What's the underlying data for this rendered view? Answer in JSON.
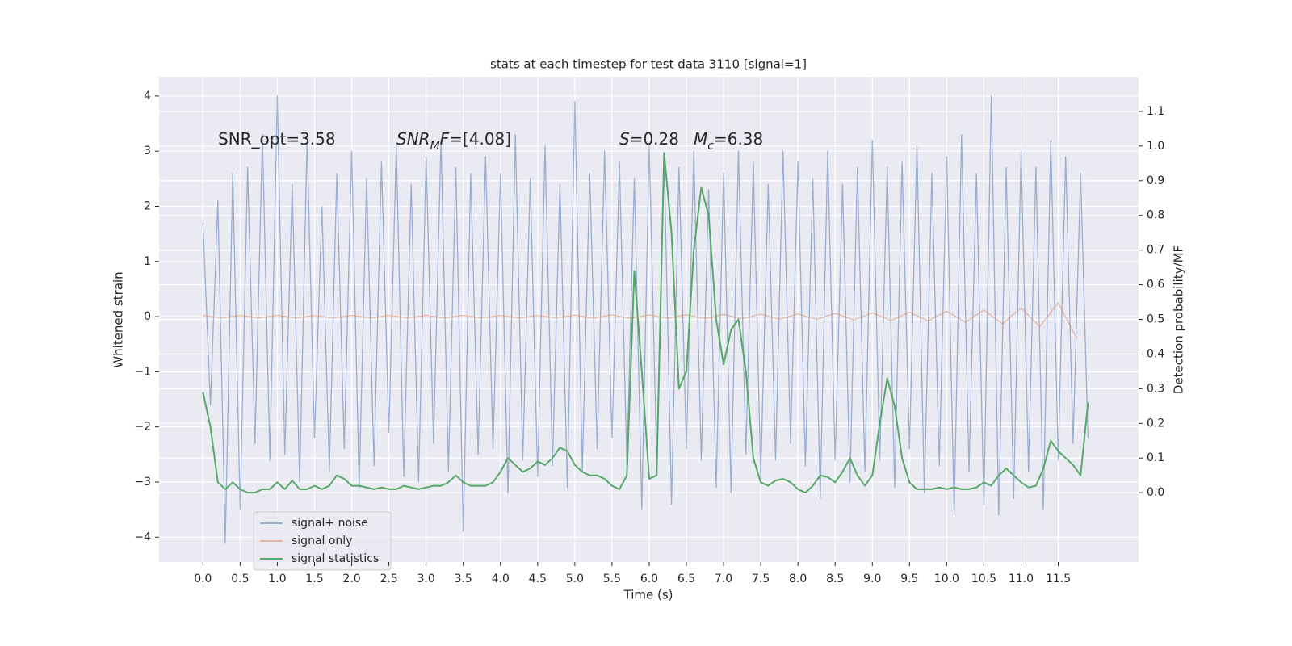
{
  "chart_data": {
    "type": "line",
    "title": "stats at each timestep for test data 3110 [signal=1]",
    "xlabel": "Time (s)",
    "ylabel": "Whitened strain",
    "y2label": "Detection probability/MF",
    "annotations": [
      [
        {
          "text": "SNR_opt=3.58"
        }
      ],
      [
        {
          "text": "SNR",
          "italic": true
        },
        {
          "text": "M",
          "italic": true,
          "sub": true
        },
        {
          "text": "F",
          "italic": true
        },
        {
          "text": "=[4.08]"
        }
      ],
      [
        {
          "text": "S",
          "italic": true
        },
        {
          "text": "=0.28"
        }
      ],
      [
        {
          "text": "M",
          "italic": true
        },
        {
          "text": "c",
          "italic": true,
          "sub": true
        },
        {
          "text": "=6.38"
        }
      ]
    ],
    "x": [
      0.0,
      0.1,
      0.2,
      0.3,
      0.4,
      0.5,
      0.6,
      0.7,
      0.8,
      0.9,
      1.0,
      1.1,
      1.2,
      1.3,
      1.4,
      1.5,
      1.6,
      1.7,
      1.8,
      1.9,
      2.0,
      2.1,
      2.2,
      2.3,
      2.4,
      2.5,
      2.6,
      2.7,
      2.8,
      2.9,
      3.0,
      3.1,
      3.2,
      3.3,
      3.4,
      3.5,
      3.6,
      3.7,
      3.8,
      3.9,
      4.0,
      4.1,
      4.2,
      4.3,
      4.4,
      4.5,
      4.6,
      4.7,
      4.8,
      4.9,
      5.0,
      5.1,
      5.2,
      5.3,
      5.4,
      5.5,
      5.6,
      5.7,
      5.8,
      5.9,
      6.0,
      6.1,
      6.2,
      6.3,
      6.4,
      6.5,
      6.6,
      6.7,
      6.8,
      6.9,
      7.0,
      7.1,
      7.2,
      7.3,
      7.4,
      7.5,
      7.6,
      7.7,
      7.8,
      7.9,
      8.0,
      8.1,
      8.2,
      8.3,
      8.4,
      8.5,
      8.6,
      8.7,
      8.8,
      8.9,
      9.0,
      9.1,
      9.2,
      9.3,
      9.4,
      9.5,
      9.6,
      9.7,
      9.8,
      9.9,
      10.0,
      10.1,
      10.2,
      10.3,
      10.4,
      10.5,
      10.6,
      10.7,
      10.8,
      10.9,
      11.0,
      11.1,
      11.2,
      11.3,
      11.4,
      11.5,
      11.6,
      11.7,
      11.8,
      11.9
    ],
    "series": [
      {
        "name": "signal+ noise",
        "color": "#4c72b0",
        "opacity": 0.5,
        "values": [
          1.7,
          -1.6,
          2.1,
          -4.1,
          2.6,
          -3.5,
          2.7,
          -2.3,
          3.3,
          -2.6,
          4.0,
          -2.5,
          2.4,
          -3.0,
          3.2,
          -2.2,
          2.0,
          -2.8,
          2.6,
          -2.4,
          3.0,
          -3.1,
          2.5,
          -2.7,
          2.8,
          -2.1,
          3.1,
          -2.9,
          2.4,
          -3.0,
          2.9,
          -2.3,
          3.2,
          -2.8,
          2.7,
          -3.9,
          2.6,
          -2.5,
          2.9,
          -2.4,
          2.6,
          -3.2,
          3.3,
          -2.6,
          2.5,
          -2.9,
          3.1,
          -2.7,
          2.4,
          -3.1,
          3.9,
          -2.8,
          2.6,
          -2.4,
          3.0,
          -2.2,
          2.8,
          -2.7,
          2.5,
          -3.5,
          3.1,
          -2.6,
          2.9,
          -3.4,
          2.7,
          -2.4,
          3.0,
          -2.6,
          2.3,
          -3.1,
          2.6,
          -3.2,
          3.0,
          -2.5,
          2.8,
          -2.9,
          2.4,
          -2.6,
          3.0,
          -2.3,
          2.8,
          -2.7,
          2.5,
          -3.3,
          3.0,
          -2.6,
          2.4,
          -3.0,
          2.7,
          -2.8,
          3.2,
          -2.6,
          2.7,
          -3.1,
          2.8,
          -2.4,
          3.1,
          -3.2,
          2.6,
          -2.7,
          2.9,
          -3.6,
          3.3,
          -2.8,
          2.6,
          -3.4,
          4.0,
          -3.6,
          2.7,
          -3.3,
          3.0,
          -2.8,
          2.7,
          -3.5,
          3.2,
          -2.6,
          2.9,
          -2.3,
          2.6,
          -2.2
        ]
      },
      {
        "name": "signal only",
        "color": "#dd8452",
        "opacity": 0.5,
        "x": [
          0.0,
          0.25,
          0.5,
          0.75,
          1.0,
          1.25,
          1.5,
          1.75,
          2.0,
          2.25,
          2.5,
          2.75,
          3.0,
          3.25,
          3.5,
          3.75,
          4.0,
          4.25,
          4.5,
          4.75,
          5.0,
          5.25,
          5.5,
          5.75,
          6.0,
          6.25,
          6.5,
          6.75,
          7.0,
          7.25,
          7.5,
          7.75,
          8.0,
          8.25,
          8.5,
          8.75,
          9.0,
          9.25,
          9.5,
          9.75,
          10.0,
          10.25,
          10.5,
          10.75,
          11.0,
          11.25,
          11.5,
          11.75
        ],
        "values": [
          0.02,
          -0.02,
          0.02,
          -0.02,
          0.02,
          -0.02,
          0.02,
          -0.02,
          0.02,
          -0.02,
          0.02,
          -0.02,
          0.02,
          -0.02,
          0.02,
          -0.02,
          0.02,
          -0.02,
          0.02,
          -0.02,
          0.025,
          -0.025,
          0.03,
          -0.03,
          0.03,
          -0.03,
          0.035,
          -0.035,
          0.04,
          -0.04,
          0.045,
          -0.045,
          0.05,
          -0.05,
          0.06,
          -0.06,
          0.07,
          -0.07,
          0.08,
          -0.08,
          0.1,
          -0.1,
          0.12,
          -0.13,
          0.16,
          -0.18,
          0.25,
          -0.4
        ]
      },
      {
        "name": "signal statistics",
        "color": "#55a868",
        "axis": "y2",
        "values": [
          0.29,
          0.19,
          0.03,
          0.01,
          0.03,
          0.01,
          0.0,
          0.0,
          0.01,
          0.01,
          0.03,
          0.01,
          0.035,
          0.01,
          0.01,
          0.02,
          0.01,
          0.02,
          0.05,
          0.04,
          0.02,
          0.02,
          0.015,
          0.01,
          0.015,
          0.01,
          0.01,
          0.02,
          0.015,
          0.01,
          0.015,
          0.02,
          0.02,
          0.03,
          0.05,
          0.03,
          0.02,
          0.02,
          0.02,
          0.03,
          0.06,
          0.1,
          0.08,
          0.06,
          0.07,
          0.09,
          0.08,
          0.1,
          0.13,
          0.12,
          0.08,
          0.06,
          0.05,
          0.05,
          0.04,
          0.02,
          0.01,
          0.05,
          0.64,
          0.35,
          0.04,
          0.05,
          0.98,
          0.75,
          0.3,
          0.35,
          0.7,
          0.88,
          0.8,
          0.5,
          0.37,
          0.47,
          0.5,
          0.35,
          0.1,
          0.03,
          0.02,
          0.035,
          0.04,
          0.03,
          0.01,
          0.0,
          0.02,
          0.05,
          0.045,
          0.03,
          0.06,
          0.1,
          0.05,
          0.02,
          0.05,
          0.2,
          0.33,
          0.25,
          0.1,
          0.03,
          0.01,
          0.01,
          0.01,
          0.015,
          0.01,
          0.015,
          0.01,
          0.01,
          0.015,
          0.03,
          0.02,
          0.05,
          0.07,
          0.05,
          0.03,
          0.015,
          0.02,
          0.07,
          0.15,
          0.12,
          0.1,
          0.08,
          0.05,
          0.26
        ]
      }
    ],
    "xlim": [
      -0.59,
      12.58
    ],
    "xticks": [
      {
        "value": 0,
        "label": "0.0"
      },
      {
        "value": 0.5,
        "label": "0.5"
      },
      {
        "value": 1,
        "label": "1.0"
      },
      {
        "value": 1.5,
        "label": "1.5"
      },
      {
        "value": 2,
        "label": "2.0"
      },
      {
        "value": 2.5,
        "label": "2.5"
      },
      {
        "value": 3,
        "label": "3.0"
      },
      {
        "value": 3.5,
        "label": "3.5"
      },
      {
        "value": 4,
        "label": "4.0"
      },
      {
        "value": 4.5,
        "label": "4.5"
      },
      {
        "value": 5,
        "label": "5.0"
      },
      {
        "value": 5.5,
        "label": "5.5"
      },
      {
        "value": 6,
        "label": "6.0"
      },
      {
        "value": 6.5,
        "label": "6.5"
      },
      {
        "value": 7,
        "label": "7.0"
      },
      {
        "value": 7.5,
        "label": "7.5"
      },
      {
        "value": 8,
        "label": "8.0"
      },
      {
        "value": 8.5,
        "label": "8.5"
      },
      {
        "value": 9,
        "label": "9.0"
      },
      {
        "value": 9.5,
        "label": "9.5"
      },
      {
        "value": 10,
        "label": "10.0"
      },
      {
        "value": 10.5,
        "label": "10.5"
      },
      {
        "value": 11,
        "label": "11.0"
      },
      {
        "value": 11.5,
        "label": "11.5"
      }
    ],
    "ylim": [
      -4.45,
      4.35
    ],
    "yticks": [
      {
        "value": -4,
        "label": "−4"
      },
      {
        "value": -3,
        "label": "−3"
      },
      {
        "value": -2,
        "label": "−2"
      },
      {
        "value": -1,
        "label": "−1"
      },
      0,
      1,
      2,
      3,
      4
    ],
    "y2lim": [
      -0.2,
      1.2
    ],
    "y2ticks": [
      {
        "value": 0,
        "label": "0.0"
      },
      {
        "value": 0.1,
        "label": "0.1"
      },
      {
        "value": 0.2,
        "label": "0.2"
      },
      {
        "value": 0.3,
        "label": "0.3"
      },
      {
        "value": 0.4,
        "label": "0.4"
      },
      {
        "value": 0.5,
        "label": "0.5"
      },
      {
        "value": 0.6,
        "label": "0.6"
      },
      {
        "value": 0.7,
        "label": "0.7"
      },
      {
        "value": 0.8,
        "label": "0.8"
      },
      {
        "value": 0.9,
        "label": "0.9"
      },
      {
        "value": 1.0,
        "label": "1.0"
      },
      {
        "value": 1.1,
        "label": "1.1"
      }
    ],
    "grid": true,
    "legend": "lower left"
  }
}
